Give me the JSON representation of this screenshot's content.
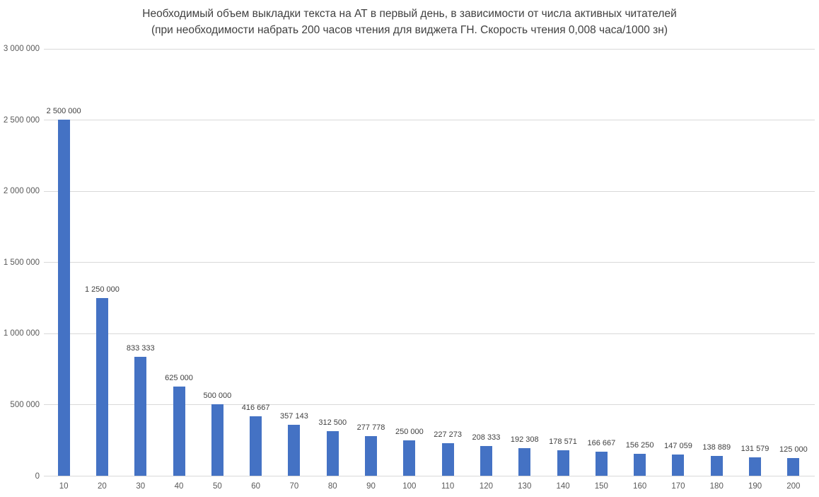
{
  "title": {
    "line1": "Необходимый объем выкладки текста на АТ в первый день, в зависимости от числа активных читателей",
    "line2": "(при необходимости набрать 200 часов чтения для виджета ГН. Скорость чтения 0,008 часа/1000 зн)"
  },
  "colors": {
    "bar": "#4472C4",
    "gridline": "#D9D9D9",
    "axis_text": "#595959",
    "data_label_text": "#404040",
    "title_text": "#404040",
    "background": "#FFFFFF"
  },
  "chart_data": {
    "type": "bar",
    "title": "Необходимый объем выкладки текста на АТ в первый день, в зависимости от числа активных читателей (при необходимости набрать 200 часов чтения для виджета ГН. Скорость чтения 0,008 часа/1000 зн)",
    "xlabel": "",
    "ylabel": "",
    "categories": [
      "10",
      "20",
      "30",
      "40",
      "50",
      "60",
      "70",
      "80",
      "90",
      "100",
      "110",
      "120",
      "130",
      "140",
      "150",
      "160",
      "170",
      "180",
      "190",
      "200"
    ],
    "values": [
      2500000,
      1250000,
      833333,
      625000,
      500000,
      416667,
      357143,
      312500,
      277778,
      250000,
      227273,
      208333,
      192308,
      178571,
      166667,
      156250,
      147059,
      138889,
      131579,
      125000
    ],
    "data_labels": [
      "2 500 000",
      "1 250 000",
      "833 333",
      "625 000",
      "500 000",
      "416 667",
      "357 143",
      "312 500",
      "277 778",
      "250 000",
      "227 273",
      "208 333",
      "192 308",
      "178 571",
      "166 667",
      "156 250",
      "147 059",
      "138 889",
      "131 579",
      "125 000"
    ],
    "y_ticks": [
      0,
      500000,
      1000000,
      1500000,
      2000000,
      2500000,
      3000000
    ],
    "y_tick_labels": [
      "0",
      "500 000",
      "1 000 000",
      "1 500 000",
      "2 000 000",
      "2 500 000",
      "3 000 000"
    ],
    "ylim": [
      0,
      3000000
    ],
    "grid": true,
    "legend": false,
    "data_labels_shown": true
  }
}
